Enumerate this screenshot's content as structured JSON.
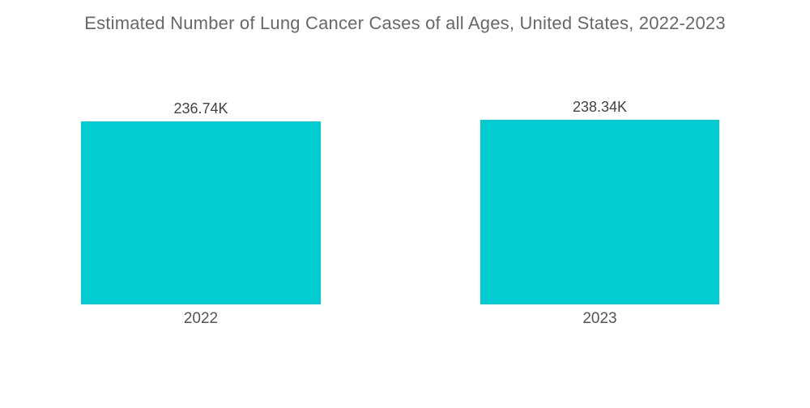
{
  "title": "Estimated Number of Lung Cancer Cases of all Ages, United States, 2022-2023",
  "colors": {
    "bar": "#00CCD2",
    "title_text": "#66686C",
    "value_label_text": "#414347",
    "category_label_text": "#515458",
    "background": "#FFFFFF"
  },
  "chart_data": {
    "type": "bar",
    "title": "Estimated Number of Lung Cancer Cases of all Ages, United States, 2022-2023",
    "categories": [
      "2022",
      "2023"
    ],
    "values": [
      236740,
      238340
    ],
    "value_labels": [
      "236.74K",
      "238.34K"
    ],
    "xlabel": "",
    "ylabel": "",
    "ylim": [
      0,
      238340
    ],
    "grid": false,
    "legend": "none",
    "bar_color": "#00CCD2"
  }
}
